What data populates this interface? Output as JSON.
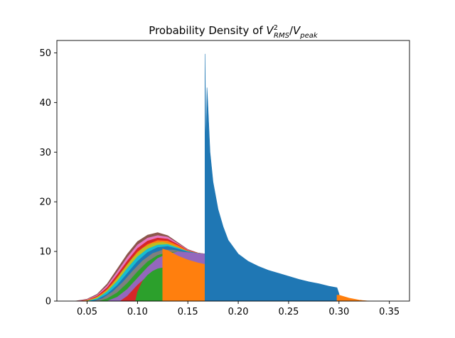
{
  "chart_data": {
    "type": "area",
    "title": {
      "prefix": "Probability Density of ",
      "v1": "V",
      "sup": "2",
      "sub1": "RMS",
      "slash": "/",
      "v2": "V",
      "sub2": "peak"
    },
    "xlabel": "",
    "ylabel": "",
    "xlim": [
      0.02,
      0.37
    ],
    "ylim": [
      0,
      52.5
    ],
    "xticks": [
      0.05,
      0.1,
      0.15,
      0.2,
      0.25,
      0.3,
      0.35
    ],
    "xtick_labels": [
      "0.05",
      "0.10",
      "0.15",
      "0.20",
      "0.25",
      "0.30",
      "0.35"
    ],
    "yticks": [
      0,
      10,
      20,
      30,
      40,
      50
    ],
    "ytick_labels": [
      "0",
      "10",
      "20",
      "30",
      "40",
      "50"
    ],
    "grid": false,
    "legend": "none",
    "series": [
      {
        "color": "#8c564b",
        "x": [
          0.038,
          0.05,
          0.06,
          0.07,
          0.08,
          0.09,
          0.1,
          0.11,
          0.12,
          0.13,
          0.14,
          0.15,
          0.16,
          0.167
        ],
        "y": [
          0,
          0.4,
          1.4,
          3.5,
          6.5,
          9.5,
          12,
          13.3,
          13.8,
          13.2,
          11.8,
          10.4,
          9.7,
          9.5
        ]
      },
      {
        "color": "#e377c2",
        "x": [
          0.04,
          0.05,
          0.06,
          0.07,
          0.08,
          0.09,
          0.1,
          0.11,
          0.12,
          0.13,
          0.14,
          0.15,
          0.16,
          0.167
        ],
        "y": [
          0,
          0.3,
          1.2,
          3.1,
          5.9,
          8.8,
          11.3,
          12.7,
          13.2,
          12.9,
          11.6,
          10.3,
          9.7,
          9.5
        ]
      },
      {
        "color": "#d62728",
        "x": [
          0.042,
          0.05,
          0.06,
          0.07,
          0.08,
          0.09,
          0.1,
          0.11,
          0.12,
          0.13,
          0.14,
          0.15,
          0.16,
          0.167
        ],
        "y": [
          0,
          0.2,
          1.0,
          2.7,
          5.3,
          8.1,
          10.6,
          12.1,
          12.7,
          12.5,
          11.4,
          10.2,
          9.7,
          9.5
        ]
      },
      {
        "color": "#ff7f0e",
        "x": [
          0.044,
          0.05,
          0.06,
          0.07,
          0.08,
          0.09,
          0.1,
          0.11,
          0.12,
          0.13,
          0.14,
          0.15,
          0.16,
          0.167
        ],
        "y": [
          0,
          0.15,
          0.8,
          2.3,
          4.7,
          7.4,
          9.9,
          11.4,
          12.2,
          12.1,
          11.2,
          10.1,
          9.6,
          9.5
        ]
      },
      {
        "color": "#bcbd22",
        "x": [
          0.047,
          0.055,
          0.065,
          0.075,
          0.085,
          0.095,
          0.105,
          0.115,
          0.125,
          0.135,
          0.145,
          0.155,
          0.167
        ],
        "y": [
          0,
          0.3,
          1.3,
          3.3,
          6.0,
          8.6,
          10.6,
          11.6,
          11.9,
          11.3,
          10.3,
          9.8,
          9.5
        ]
      },
      {
        "color": "#17becf",
        "x": [
          0.05,
          0.06,
          0.07,
          0.08,
          0.09,
          0.1,
          0.11,
          0.12,
          0.13,
          0.14,
          0.15,
          0.16,
          0.167
        ],
        "y": [
          0,
          0.5,
          1.9,
          4.0,
          6.6,
          8.9,
          10.5,
          11.3,
          11.4,
          10.7,
          10.0,
          9.6,
          9.5
        ]
      },
      {
        "color": "#1f77b4",
        "x": [
          0.053,
          0.06,
          0.07,
          0.08,
          0.09,
          0.1,
          0.11,
          0.12,
          0.13,
          0.14,
          0.15,
          0.16,
          0.167
        ],
        "y": [
          0,
          0.3,
          1.4,
          3.2,
          5.6,
          8.0,
          9.8,
          10.8,
          11.0,
          10.5,
          9.9,
          9.6,
          9.5
        ]
      },
      {
        "color": "#7f7f7f",
        "x": [
          0.057,
          0.065,
          0.075,
          0.085,
          0.095,
          0.105,
          0.115,
          0.125,
          0.135,
          0.145,
          0.155,
          0.167
        ],
        "y": [
          0,
          0.5,
          1.8,
          3.7,
          6.0,
          8.1,
          9.6,
          10.3,
          10.3,
          9.9,
          9.6,
          9.5
        ]
      },
      {
        "color": "#2ca02c",
        "x": [
          0.062,
          0.07,
          0.08,
          0.09,
          0.1,
          0.11,
          0.12,
          0.13,
          0.14,
          0.15,
          0.16,
          0.167
        ],
        "y": [
          0,
          0.5,
          1.7,
          3.6,
          5.9,
          7.9,
          9.2,
          9.8,
          9.9,
          9.7,
          9.5,
          9.5
        ]
      },
      {
        "color": "#9467bd",
        "x": [
          0.07,
          0.08,
          0.09,
          0.1,
          0.11,
          0.12,
          0.13,
          0.14,
          0.15,
          0.16,
          0.167
        ],
        "y": [
          0,
          0.8,
          2.4,
          4.6,
          6.8,
          8.6,
          9.5,
          9.9,
          9.8,
          9.6,
          9.5
        ]
      },
      {
        "color": "#d62728",
        "x": [
          0.083,
          0.09,
          0.1,
          0.11,
          0.12,
          0.125
        ],
        "y": [
          0,
          1.0,
          3.2,
          5.0,
          6.3,
          6.7
        ]
      },
      {
        "color": "#2ca02c",
        "x": [
          0.098,
          0.1,
          0.105,
          0.11,
          0.115,
          0.12,
          0.125
        ],
        "y": [
          0,
          1.8,
          4.0,
          5.2,
          6.0,
          6.5,
          6.7
        ]
      },
      {
        "color": "#ff7f0e",
        "x": [
          0.125,
          0.125,
          0.13,
          0.14,
          0.15,
          0.16,
          0.167,
          0.167
        ],
        "y": [
          0,
          10.5,
          10.2,
          9.1,
          8.3,
          7.7,
          7.4,
          0
        ]
      },
      {
        "color": "#1f77b4",
        "x": [
          0.167,
          0.167,
          0.168,
          0.169,
          0.17,
          0.172,
          0.175,
          0.18,
          0.185,
          0.19,
          0.2,
          0.21,
          0.22,
          0.23,
          0.24,
          0.25,
          0.26,
          0.27,
          0.28,
          0.29,
          0.298,
          0.3,
          0.301
        ],
        "y": [
          0,
          49.8,
          31,
          43,
          39,
          30,
          24,
          18.5,
          15,
          12.3,
          9.5,
          8.0,
          7.0,
          6.2,
          5.6,
          5.0,
          4.4,
          3.9,
          3.5,
          3.0,
          2.7,
          1.5,
          0
        ]
      },
      {
        "color": "#ff7f0e",
        "x": [
          0.298,
          0.3,
          0.31,
          0.32,
          0.33
        ],
        "y": [
          1.2,
          1.2,
          0.6,
          0.2,
          0
        ]
      }
    ]
  }
}
